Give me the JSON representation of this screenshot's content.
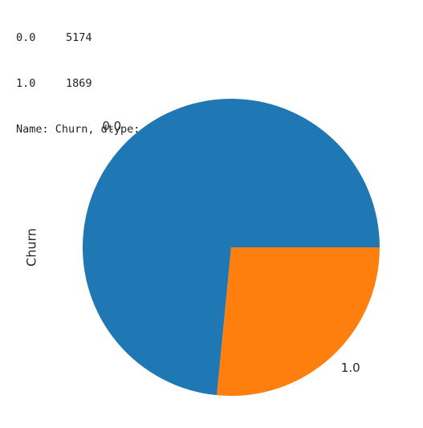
{
  "output": {
    "rows": [
      {
        "index": "0.0",
        "count": "5174"
      },
      {
        "index": "1.0",
        "count": "1869"
      }
    ],
    "footer": "Name: Churn, dtype: int64"
  },
  "colors": {
    "slice_0": "#1f77b4",
    "slice_1": "#ff7f0e"
  },
  "chart_data": {
    "type": "pie",
    "categories": [
      "0.0",
      "1.0"
    ],
    "values": [
      5174,
      1869
    ],
    "ylabel": "Churn",
    "start_angle_deg": 0,
    "direction": "counterclockwise"
  }
}
